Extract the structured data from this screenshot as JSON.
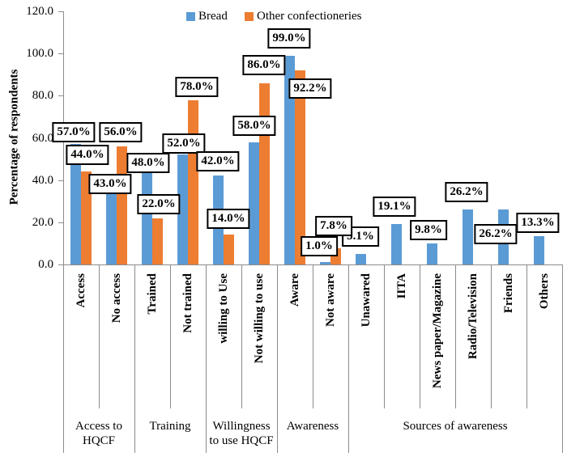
{
  "chart_data": {
    "type": "bar",
    "title": "",
    "ylabel": "Percentage of respondents",
    "ylim": [
      0,
      120
    ],
    "ytick_step": 20,
    "yticks": [
      {
        "value": 120,
        "label": "120.0"
      },
      {
        "value": 100,
        "label": "100.0"
      },
      {
        "value": 80,
        "label": "80.0"
      },
      {
        "value": 60,
        "label": "60.0"
      },
      {
        "value": 40,
        "label": "40.0"
      },
      {
        "value": 20,
        "label": "20.0"
      },
      {
        "value": 0,
        "label": "0.0"
      }
    ],
    "grid": false,
    "legend_position": "top",
    "categories": [
      "Access",
      "No access",
      "Trained",
      "Not trained",
      "willing to Use",
      "Not willing to use",
      "Aware",
      "Not aware",
      "Unawared",
      "IITA",
      "News paper/Magazine",
      "Radio/Television",
      "Friends",
      "Others"
    ],
    "groups": [
      {
        "label": "Access to\nHQCF",
        "start": 0,
        "end": 1
      },
      {
        "label": "Training",
        "start": 2,
        "end": 3
      },
      {
        "label": "Willingness\nto use HQCF",
        "start": 4,
        "end": 5
      },
      {
        "label": "Awareness",
        "start": 6,
        "end": 7
      },
      {
        "label": "Sources of awareness",
        "start": 8,
        "end": 13
      }
    ],
    "series": [
      {
        "name": "Bread",
        "color": "#5B9BD5",
        "values": [
          57,
          43,
          48,
          52,
          42,
          58,
          99,
          1,
          5.1,
          19.1,
          9.8,
          26.2,
          26.2,
          13.3
        ]
      },
      {
        "name": "Other confectioneries",
        "color": "#ED7D31",
        "values": [
          44,
          56,
          22,
          78,
          14,
          86,
          92.2,
          7.8,
          null,
          null,
          null,
          null,
          null,
          null
        ]
      }
    ],
    "data_labels": [
      "57.0%",
      "44.0%",
      "43.0%",
      "56.0%",
      "48.0%",
      "22.0%",
      "52.0%",
      "78.0%",
      "42.0%",
      "14.0%",
      "58.0%",
      "86.0%",
      "99.0%",
      "92.2%",
      "1.0%",
      "5.1%",
      "7.8%",
      "19.1%",
      "9.8%",
      "26.2%",
      "26.2%",
      "13.3%"
    ]
  },
  "colors": {
    "bread": "#5B9BD5",
    "other_confectioneries": "#ED7D31",
    "axis": "#8c8c8c",
    "label_border": "#000000"
  }
}
